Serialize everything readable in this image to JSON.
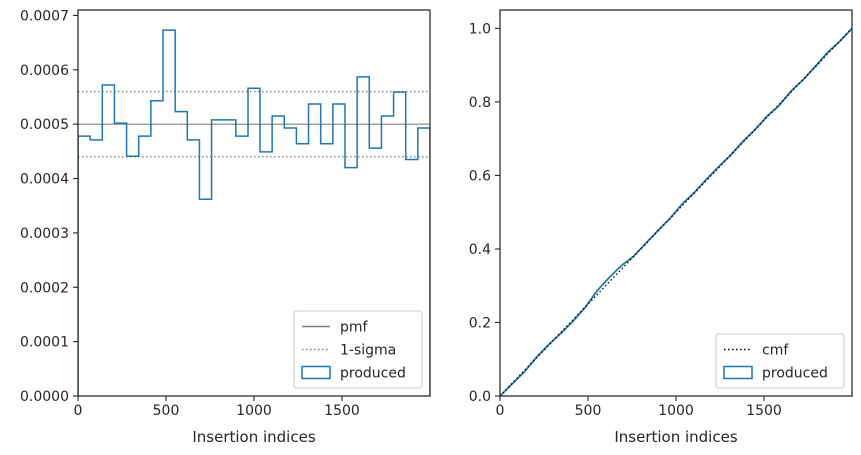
{
  "chart_data": [
    {
      "type": "histogram-step",
      "xlabel": "Insertion indices",
      "ylabel": "",
      "xlim": [
        0,
        2000
      ],
      "ylim": [
        0,
        0.00071
      ],
      "xticks": [
        0,
        500,
        1000,
        1500
      ],
      "xtick_labels": [
        "0",
        "500",
        "1000",
        "1500"
      ],
      "yticks": [
        0,
        0.0001,
        0.0002,
        0.0003,
        0.0004,
        0.0005,
        0.0006,
        0.0007
      ],
      "ytick_labels": [
        "0.0000",
        "0.0001",
        "0.0002",
        "0.0003",
        "0.0004",
        "0.0005",
        "0.0006",
        "0.0007"
      ],
      "legend_position": "lower-right",
      "pmf": 0.0005,
      "sigma_band": [
        0.00044,
        0.00056
      ],
      "bin_edges": [
        0,
        69,
        138,
        207,
        276,
        345,
        414,
        483,
        552,
        621,
        690,
        759,
        828,
        897,
        966,
        1034,
        1103,
        1172,
        1241,
        1310,
        1379,
        1448,
        1517,
        1586,
        1655,
        1724,
        1793,
        1862,
        1931,
        2000
      ],
      "counts": [
        0.000478,
        0.000471,
        0.000572,
        0.000502,
        0.000441,
        0.000478,
        0.000543,
        0.000673,
        0.000523,
        0.000471,
        0.000362,
        0.000508,
        0.000508,
        0.000478,
        0.000566,
        0.000449,
        0.000515,
        0.000493,
        0.000464,
        0.000537,
        0.000464,
        0.000537,
        0.00042,
        0.000587,
        0.000456,
        0.000515,
        0.000559,
        0.000435,
        0.000493
      ],
      "series": [
        {
          "name": "pmf",
          "style": "solid",
          "color": "#808080"
        },
        {
          "name": "1-sigma",
          "style": "dotted",
          "color": "#808080"
        },
        {
          "name": "produced",
          "style": "step",
          "color": "#1f77b4"
        }
      ]
    },
    {
      "type": "line",
      "xlabel": "Insertion indices",
      "ylabel": "",
      "xlim": [
        0,
        2000
      ],
      "ylim": [
        0,
        1.05
      ],
      "xticks": [
        0,
        500,
        1000,
        1500
      ],
      "xtick_labels": [
        "0",
        "500",
        "1000",
        "1500"
      ],
      "yticks": [
        0,
        0.2,
        0.4,
        0.6,
        0.8,
        1.0
      ],
      "ytick_labels": [
        "0.0",
        "0.2",
        "0.4",
        "0.6",
        "0.8",
        "1.0"
      ],
      "legend_position": "lower-right",
      "x": [
        0,
        69,
        138,
        207,
        276,
        345,
        414,
        483,
        552,
        621,
        690,
        759,
        828,
        897,
        966,
        1034,
        1103,
        1172,
        1241,
        1310,
        1379,
        1448,
        1517,
        1586,
        1655,
        1724,
        1793,
        1862,
        1931,
        2000
      ],
      "series": [
        {
          "name": "cmf",
          "style": "dotted",
          "color": "#000000",
          "values": [
            0,
            0.0345,
            0.069,
            0.1035,
            0.138,
            0.1725,
            0.207,
            0.2415,
            0.276,
            0.3105,
            0.345,
            0.3795,
            0.414,
            0.4485,
            0.483,
            0.517,
            0.5515,
            0.586,
            0.6205,
            0.655,
            0.6895,
            0.724,
            0.7585,
            0.793,
            0.8275,
            0.862,
            0.8965,
            0.931,
            0.9655,
            1.0
          ]
        },
        {
          "name": "produced",
          "style": "solid",
          "color": "#1f77b4",
          "values": [
            0,
            0.033,
            0.0655,
            0.105,
            0.1395,
            0.17,
            0.203,
            0.2405,
            0.2865,
            0.3225,
            0.355,
            0.38,
            0.415,
            0.45,
            0.483,
            0.522,
            0.553,
            0.589,
            0.623,
            0.655,
            0.692,
            0.724,
            0.761,
            0.79,
            0.83,
            0.861,
            0.897,
            0.935,
            0.965,
            1.0
          ]
        }
      ]
    }
  ]
}
